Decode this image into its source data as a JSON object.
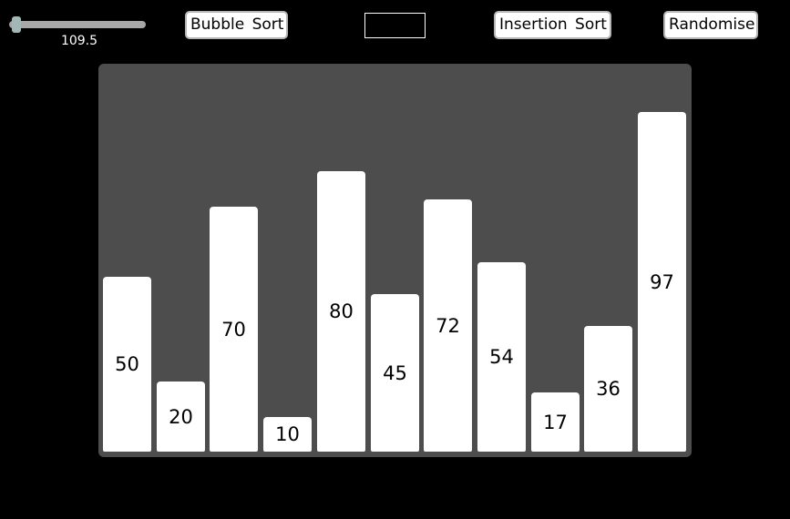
{
  "slider": {
    "value": 109.5,
    "value_label": "109.5",
    "level": 0.05
  },
  "buttons": {
    "bubble_sort": "Bubble Sort",
    "insertion_sort": "Insertion Sort",
    "randomise": "Randomise"
  },
  "status_box": {
    "text": ""
  },
  "colors": {
    "background": "#000000",
    "panel": "#4d4d4d",
    "bar": "#ffffff",
    "slider_track": "#a7a7a7",
    "slider_thumb": "#a3b7b7"
  },
  "chart_data": {
    "type": "bar",
    "values": [
      50,
      20,
      70,
      10,
      80,
      45,
      72,
      54,
      17,
      36,
      97
    ],
    "data_labels": [
      "50",
      "20",
      "70",
      "10",
      "80",
      "45",
      "72",
      "54",
      "17",
      "36",
      "97"
    ],
    "ylim": [
      0,
      97
    ],
    "grid": false
  }
}
